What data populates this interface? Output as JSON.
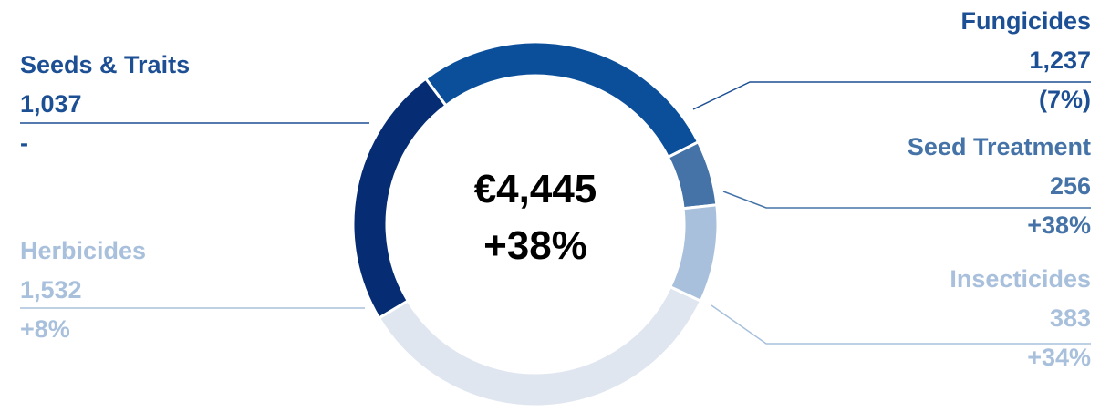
{
  "chart_data": {
    "type": "pie",
    "donut": true,
    "center_title": "€4,445",
    "center_subtitle": "+38%",
    "categories": [
      "Fungicides",
      "Seed Treatment",
      "Insecticides",
      "Herbicides",
      "Seeds & Traits"
    ],
    "values": [
      1237,
      256,
      383,
      1532,
      1037
    ],
    "value_labels": [
      "1,237",
      "256",
      "383",
      "1,532",
      "1,037"
    ],
    "changes": [
      "(7%)",
      "+38%",
      "+34%",
      "+8%",
      "-"
    ],
    "colors": [
      "#0b4f9b",
      "#4573a8",
      "#a8c0dc",
      "#dfe6f0",
      "#062d74"
    ]
  }
}
